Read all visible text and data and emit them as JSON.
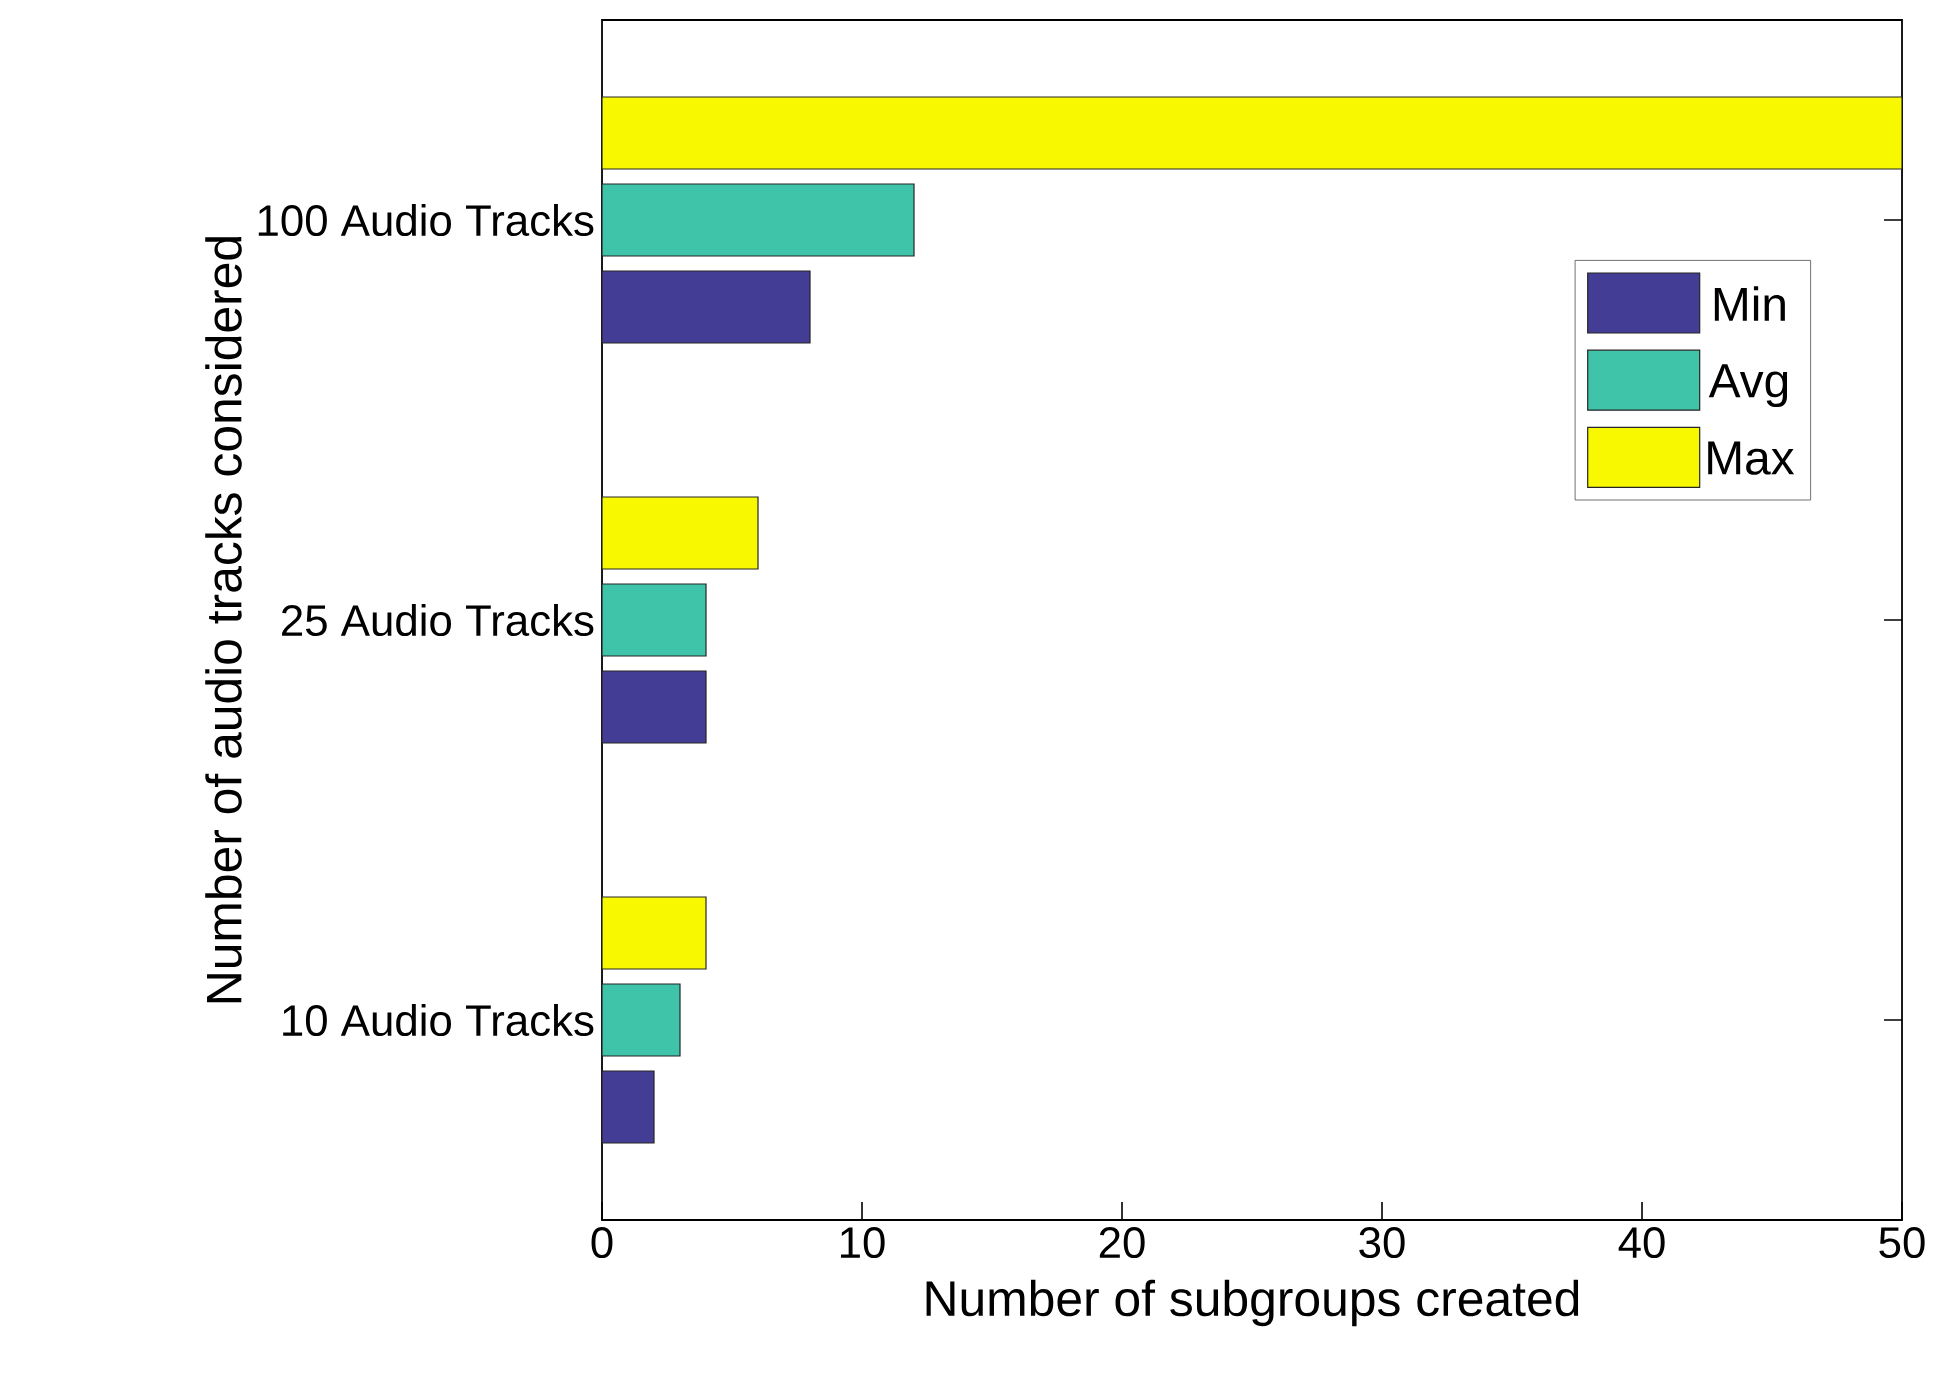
{
  "chart_data": {
    "type": "bar",
    "orientation": "horizontal",
    "xlabel": "Number of subgroups created",
    "ylabel": "Number of audio tracks considered",
    "categories": [
      "100 Audio Tracks",
      "25 Audio Tracks",
      "10 Audio Tracks"
    ],
    "series": [
      {
        "name": "Min",
        "color": "#433d95",
        "values": [
          8,
          4,
          2
        ]
      },
      {
        "name": "Avg",
        "color": "#3fc4aa",
        "values": [
          12,
          4,
          3
        ]
      },
      {
        "name": "Max",
        "color": "#f8f800",
        "values": [
          50,
          6,
          4
        ]
      }
    ],
    "xlim": [
      0,
      50
    ],
    "xticks": [
      0,
      10,
      20,
      30,
      40,
      50
    ],
    "legend": "top right"
  }
}
